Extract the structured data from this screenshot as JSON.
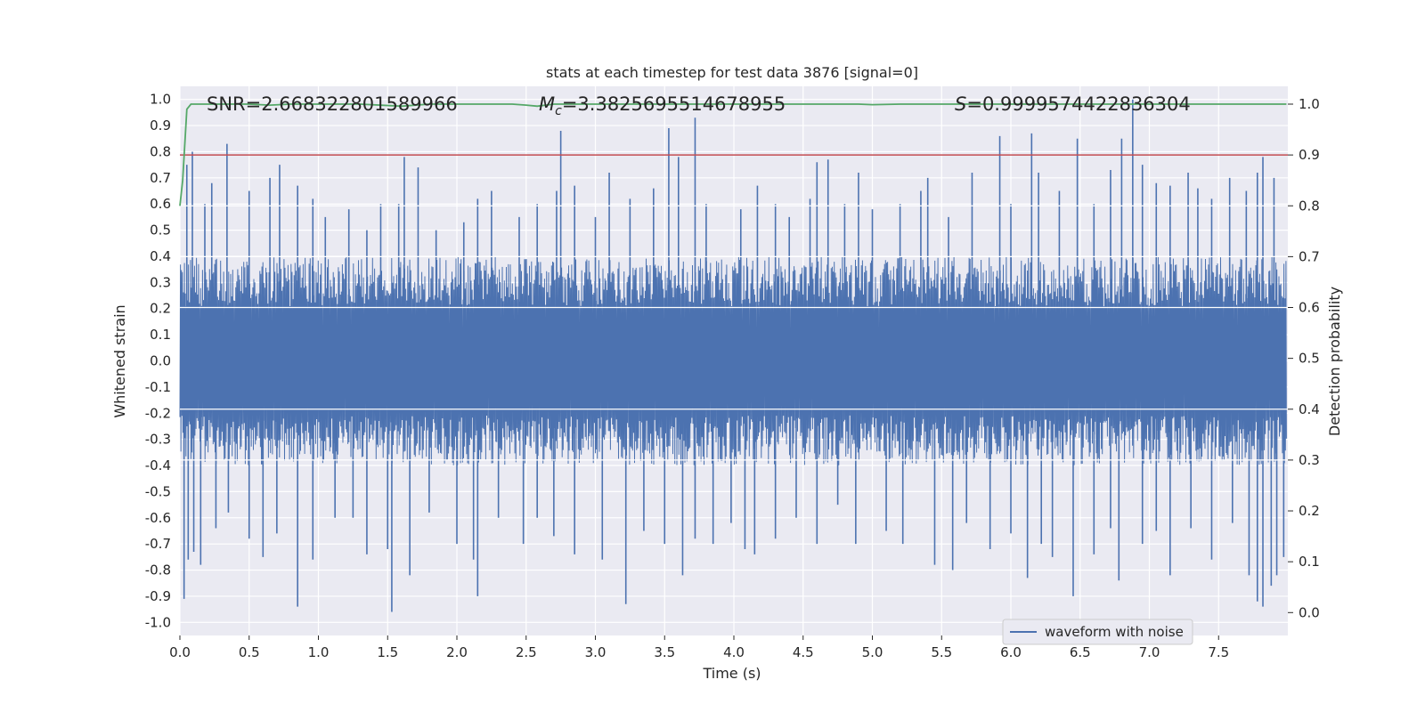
{
  "chart_data": {
    "type": "line",
    "title": "stats at each timestep for test data 3876 [signal=0]",
    "xlabel": "Time (s)",
    "ylabel": "Whitened strain",
    "y2label": "Detection probability",
    "xlim": [
      0.0,
      8.0
    ],
    "ylim": [
      -1.05,
      1.05
    ],
    "y2lim": [
      -0.045,
      1.035
    ],
    "xticks": [
      "0.0",
      "0.5",
      "1.0",
      "1.5",
      "2.0",
      "2.5",
      "3.0",
      "3.5",
      "4.0",
      "4.5",
      "5.0",
      "5.5",
      "6.0",
      "6.5",
      "7.0",
      "7.5"
    ],
    "yticks": [
      "1.0",
      "0.9",
      "0.8",
      "0.7",
      "0.6",
      "0.5",
      "0.4",
      "0.3",
      "0.2",
      "0.1",
      "0.0",
      "-0.1",
      "-0.2",
      "-0.3",
      "-0.4",
      "-0.5",
      "-0.6",
      "-0.7",
      "-0.8",
      "-0.9",
      "-1.0"
    ],
    "y2ticks": [
      "1.0",
      "0.9",
      "0.8",
      "0.7",
      "0.6",
      "0.5",
      "0.4",
      "0.3",
      "0.2",
      "0.1",
      "0.0"
    ],
    "annotations": {
      "snr": "SNR=2.668322801589966",
      "mc_symbol": "M",
      "mc_sub": "c",
      "mc_value": "=3.3825695514678955",
      "s_symbol": "S",
      "s_value": "=0.9999574422836304"
    },
    "threshold": 0.9,
    "series": [
      {
        "name": "waveform with noise",
        "axis": "left",
        "color": "#4c72b0",
        "dense_band": [
          -0.38,
          0.38
        ],
        "spikes_up": [
          [
            0.05,
            0.75
          ],
          [
            0.09,
            0.8
          ],
          [
            0.18,
            0.6
          ],
          [
            0.23,
            0.68
          ],
          [
            0.34,
            0.83
          ],
          [
            0.5,
            0.65
          ],
          [
            0.65,
            0.7
          ],
          [
            0.72,
            0.75
          ],
          [
            0.85,
            0.67
          ],
          [
            0.96,
            0.62
          ],
          [
            1.05,
            0.55
          ],
          [
            1.22,
            0.58
          ],
          [
            1.35,
            0.5
          ],
          [
            1.45,
            0.6
          ],
          [
            1.58,
            0.6
          ],
          [
            1.62,
            0.78
          ],
          [
            1.72,
            0.74
          ],
          [
            1.85,
            0.5
          ],
          [
            2.05,
            0.53
          ],
          [
            2.15,
            0.62
          ],
          [
            2.25,
            0.65
          ],
          [
            2.45,
            0.55
          ],
          [
            2.58,
            0.6
          ],
          [
            2.72,
            0.65
          ],
          [
            2.75,
            0.88
          ],
          [
            2.85,
            0.67
          ],
          [
            3.0,
            0.55
          ],
          [
            3.1,
            0.72
          ],
          [
            3.25,
            0.62
          ],
          [
            3.42,
            0.66
          ],
          [
            3.53,
            0.89
          ],
          [
            3.6,
            0.78
          ],
          [
            3.72,
            0.93
          ],
          [
            3.8,
            0.6
          ],
          [
            4.05,
            0.58
          ],
          [
            4.17,
            0.67
          ],
          [
            4.3,
            0.6
          ],
          [
            4.4,
            0.55
          ],
          [
            4.55,
            0.62
          ],
          [
            4.6,
            0.76
          ],
          [
            4.68,
            0.77
          ],
          [
            4.8,
            0.6
          ],
          [
            4.9,
            0.72
          ],
          [
            5.0,
            0.58
          ],
          [
            5.2,
            0.6
          ],
          [
            5.35,
            0.65
          ],
          [
            5.4,
            0.7
          ],
          [
            5.55,
            0.55
          ],
          [
            5.72,
            0.72
          ],
          [
            5.92,
            0.86
          ],
          [
            6.0,
            0.6
          ],
          [
            6.15,
            0.87
          ],
          [
            6.2,
            0.72
          ],
          [
            6.35,
            0.65
          ],
          [
            6.48,
            0.85
          ],
          [
            6.6,
            0.6
          ],
          [
            6.72,
            0.73
          ],
          [
            6.8,
            0.85
          ],
          [
            6.88,
            1.0
          ],
          [
            6.95,
            0.75
          ],
          [
            7.05,
            0.68
          ],
          [
            7.15,
            0.67
          ],
          [
            7.28,
            0.72
          ],
          [
            7.35,
            0.66
          ],
          [
            7.45,
            0.62
          ],
          [
            7.58,
            0.7
          ],
          [
            7.7,
            0.65
          ],
          [
            7.78,
            0.72
          ],
          [
            7.82,
            0.78
          ],
          [
            7.9,
            0.7
          ]
        ],
        "spikes_down": [
          [
            0.03,
            -0.91
          ],
          [
            0.06,
            -0.76
          ],
          [
            0.1,
            -0.73
          ],
          [
            0.15,
            -0.78
          ],
          [
            0.26,
            -0.64
          ],
          [
            0.35,
            -0.58
          ],
          [
            0.5,
            -0.68
          ],
          [
            0.6,
            -0.75
          ],
          [
            0.7,
            -0.66
          ],
          [
            0.85,
            -0.94
          ],
          [
            0.96,
            -0.76
          ],
          [
            1.12,
            -0.6
          ],
          [
            1.25,
            -0.6
          ],
          [
            1.35,
            -0.74
          ],
          [
            1.5,
            -0.72
          ],
          [
            1.53,
            -0.96
          ],
          [
            1.66,
            -0.82
          ],
          [
            1.8,
            -0.58
          ],
          [
            2.0,
            -0.7
          ],
          [
            2.12,
            -0.76
          ],
          [
            2.15,
            -0.9
          ],
          [
            2.3,
            -0.6
          ],
          [
            2.48,
            -0.7
          ],
          [
            2.58,
            -0.6
          ],
          [
            2.7,
            -0.67
          ],
          [
            2.85,
            -0.74
          ],
          [
            3.05,
            -0.76
          ],
          [
            3.22,
            -0.93
          ],
          [
            3.35,
            -0.65
          ],
          [
            3.5,
            -0.7
          ],
          [
            3.63,
            -0.82
          ],
          [
            3.72,
            -0.68
          ],
          [
            3.85,
            -0.7
          ],
          [
            3.98,
            -0.62
          ],
          [
            4.08,
            -0.72
          ],
          [
            4.15,
            -0.74
          ],
          [
            4.3,
            -0.68
          ],
          [
            4.45,
            -0.6
          ],
          [
            4.6,
            -0.7
          ],
          [
            4.75,
            -0.55
          ],
          [
            4.88,
            -0.7
          ],
          [
            5.1,
            -0.65
          ],
          [
            5.22,
            -0.7
          ],
          [
            5.45,
            -0.78
          ],
          [
            5.58,
            -0.8
          ],
          [
            5.68,
            -0.62
          ],
          [
            5.85,
            -0.72
          ],
          [
            6.0,
            -0.66
          ],
          [
            6.12,
            -0.83
          ],
          [
            6.22,
            -0.7
          ],
          [
            6.3,
            -0.75
          ],
          [
            6.45,
            -0.9
          ],
          [
            6.6,
            -0.74
          ],
          [
            6.72,
            -0.64
          ],
          [
            6.78,
            -0.84
          ],
          [
            6.95,
            -0.7
          ],
          [
            7.05,
            -0.65
          ],
          [
            7.15,
            -0.82
          ],
          [
            7.3,
            -0.64
          ],
          [
            7.45,
            -0.76
          ],
          [
            7.6,
            -0.62
          ],
          [
            7.72,
            -0.82
          ],
          [
            7.78,
            -0.92
          ],
          [
            7.82,
            -0.94
          ],
          [
            7.88,
            -0.86
          ],
          [
            7.92,
            -0.82
          ],
          [
            7.97,
            -0.75
          ]
        ]
      },
      {
        "name": "detection probability",
        "axis": "right",
        "color": "#55a868",
        "points": [
          [
            0.0,
            0.8
          ],
          [
            0.02,
            0.85
          ],
          [
            0.05,
            0.99
          ],
          [
            0.08,
            1.0
          ],
          [
            0.12,
            1.0
          ],
          [
            0.5,
            1.0
          ],
          [
            0.65,
            0.998
          ],
          [
            0.8,
            1.0
          ],
          [
            1.3,
            1.0
          ],
          [
            1.6,
            0.996
          ],
          [
            1.8,
            1.0
          ],
          [
            2.4,
            1.0
          ],
          [
            2.5,
            0.998
          ],
          [
            2.58,
            0.996
          ],
          [
            2.7,
            1.0
          ],
          [
            4.9,
            1.0
          ],
          [
            5.0,
            0.999
          ],
          [
            5.2,
            1.0
          ],
          [
            7.99,
            1.0
          ]
        ]
      }
    ]
  },
  "legend": {
    "label": "waveform with noise",
    "placement": "bottom-right"
  },
  "colors": {
    "axes_bg": "#eaeaf2",
    "grid": "#ffffff",
    "waveform": "#4c72b0",
    "probability": "#55a868",
    "threshold": "#c44e52"
  }
}
